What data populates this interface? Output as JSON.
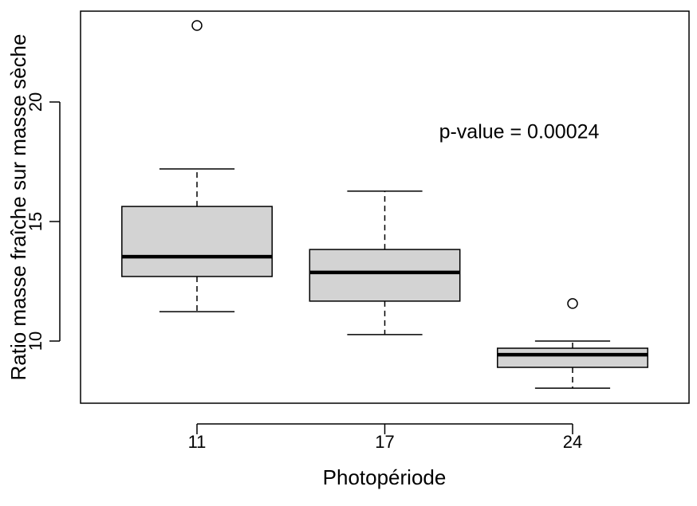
{
  "chart_data": {
    "type": "boxplot",
    "x_label": "Photopériode",
    "y_label": "Ratio masse fraîche sur masse sèche",
    "annotation": "p-value = 0.00024",
    "categories": [
      "11",
      "17",
      "24"
    ],
    "color": "#d3d3d3",
    "boxes": [
      {
        "whislo": 11.23,
        "q1": 12.7,
        "med": 13.53,
        "q3": 15.63,
        "whishi": 17.2,
        "outliers": [
          23.2
        ]
      },
      {
        "whislo": 10.27,
        "q1": 11.67,
        "med": 12.87,
        "q3": 13.83,
        "whishi": 16.27,
        "outliers": []
      },
      {
        "whislo": 8.03,
        "q1": 8.9,
        "med": 9.43,
        "q3": 9.7,
        "whishi": 10.0,
        "outliers": [
          11.57
        ]
      }
    ],
    "ylim": [
      7.4,
      23.8
    ],
    "yticks": [
      10,
      15,
      20
    ]
  }
}
